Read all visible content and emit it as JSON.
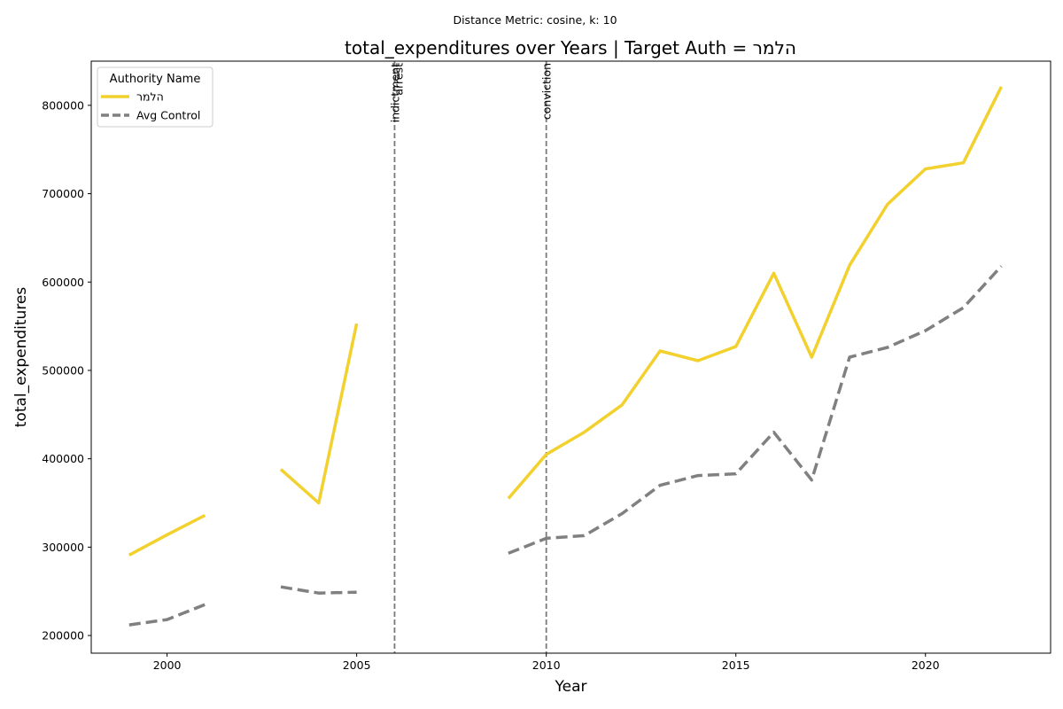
{
  "chart_data": {
    "type": "line",
    "suptitle": "Distance Metric: cosine, k: 10",
    "title": "total_expenditures over Years | Target Auth = הלמר",
    "xlabel": "Year",
    "ylabel": "total_expenditures",
    "xlim": [
      1998,
      2023.3
    ],
    "ylim": [
      180000,
      850000
    ],
    "xticks": [
      2000,
      2005,
      2010,
      2015,
      2020
    ],
    "yticks": [
      200000,
      300000,
      400000,
      500000,
      600000,
      700000,
      800000
    ],
    "grid": false,
    "legend": {
      "title": "Authority Name",
      "placement": "top-left"
    },
    "series": [
      {
        "name": "הלמר",
        "color": "#f2d12e",
        "style": "solid",
        "points": [
          [
            1999,
            291000
          ],
          [
            2000,
            314000
          ],
          [
            2001,
            336000
          ],
          [
            2002,
            null
          ],
          [
            2003,
            388000
          ],
          [
            2004,
            350000
          ],
          [
            2005,
            553000
          ],
          [
            2006,
            null
          ],
          [
            2007,
            null
          ],
          [
            2008,
            null
          ],
          [
            2009,
            355000
          ],
          [
            2010,
            405000
          ],
          [
            2011,
            430000
          ],
          [
            2012,
            461000
          ],
          [
            2013,
            522000
          ],
          [
            2014,
            511000
          ],
          [
            2015,
            527000
          ],
          [
            2016,
            610000
          ],
          [
            2017,
            515000
          ],
          [
            2018,
            619000
          ],
          [
            2019,
            688000
          ],
          [
            2020,
            728000
          ],
          [
            2021,
            735000
          ],
          [
            2022,
            821000
          ]
        ]
      },
      {
        "name": "Avg Control",
        "color": "#808080",
        "style": "dashed",
        "points": [
          [
            1999,
            212000
          ],
          [
            2000,
            218000
          ],
          [
            2001,
            235000
          ],
          [
            2002,
            null
          ],
          [
            2003,
            255000
          ],
          [
            2004,
            248000
          ],
          [
            2005,
            249000
          ],
          [
            2006,
            null
          ],
          [
            2007,
            null
          ],
          [
            2008,
            null
          ],
          [
            2009,
            293000
          ],
          [
            2010,
            310000
          ],
          [
            2011,
            313000
          ],
          [
            2012,
            338000
          ],
          [
            2013,
            370000
          ],
          [
            2014,
            381000
          ],
          [
            2015,
            383000
          ],
          [
            2016,
            430000
          ],
          [
            2017,
            376000
          ],
          [
            2018,
            515000
          ],
          [
            2019,
            526000
          ],
          [
            2020,
            545000
          ],
          [
            2021,
            571000
          ],
          [
            2022,
            618000
          ]
        ]
      }
    ],
    "events": [
      {
        "x": 2006,
        "labels": [
          "indictment",
          "arrest"
        ]
      },
      {
        "x": 2010,
        "labels": [
          "conviction"
        ]
      }
    ]
  }
}
